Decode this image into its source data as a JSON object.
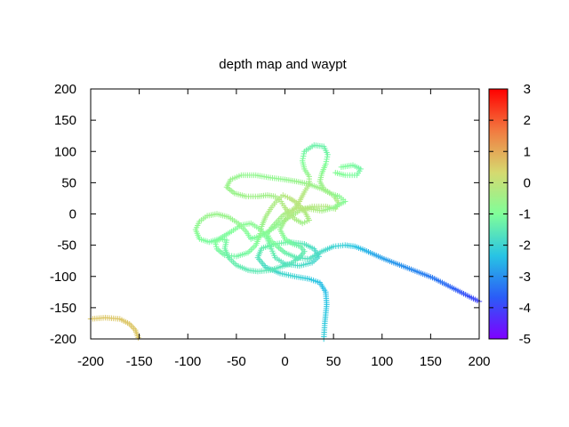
{
  "chart_data": {
    "type": "scatter",
    "title": "depth map   and waypt",
    "xlabel": "",
    "ylabel": "",
    "xlim": [
      -200,
      200
    ],
    "ylim": [
      -200,
      200
    ],
    "xticks": [
      "-200",
      "-150",
      "-100",
      "-50",
      "0",
      "50",
      "100",
      "150",
      "200"
    ],
    "yticks": [
      "200",
      "150",
      "100",
      "50",
      "0",
      "-50",
      "-100",
      "-150",
      "-200"
    ],
    "colorbar": {
      "range": [
        -5,
        3
      ],
      "ticks": [
        "3",
        "2",
        "1",
        "0",
        "-1",
        "-2",
        "-3",
        "-4",
        "-5"
      ],
      "colormap": "rainbow",
      "colors": [
        "#7f00ff",
        "#2a5cf7",
        "#28c4e4",
        "#80fe99",
        "#d6d96f",
        "#f27a40",
        "#ff0000"
      ]
    },
    "grid": false,
    "marker": "plus",
    "series": [
      {
        "points": [
          [
            -200,
            -168,
            0.6
          ],
          [
            -185,
            -166,
            0.6
          ],
          [
            -170,
            -168,
            0.6
          ],
          [
            -160,
            -176,
            0.6
          ],
          [
            -154,
            -186,
            0.6
          ],
          [
            -151,
            -198,
            0.6
          ],
          [
            40,
            -200,
            -2.1
          ],
          [
            41,
            -175,
            -2.2
          ],
          [
            43,
            -145,
            -2.3
          ],
          [
            42,
            -125,
            -2.4
          ],
          [
            36,
            -110,
            -2.4
          ],
          [
            25,
            -104,
            -2.2
          ],
          [
            10,
            -100,
            -2.0
          ],
          [
            -5,
            -95,
            -1.9
          ],
          [
            -20,
            -85,
            -1.8
          ],
          [
            -28,
            -70,
            -1.6
          ],
          [
            -24,
            -55,
            -1.4
          ],
          [
            -10,
            -48,
            -1.2
          ],
          [
            5,
            -45,
            -1.3
          ],
          [
            20,
            -48,
            -1.6
          ],
          [
            30,
            -56,
            -1.8
          ],
          [
            35,
            -68,
            -1.9
          ],
          [
            28,
            -78,
            -1.9
          ],
          [
            15,
            -83,
            -1.8
          ],
          [
            0,
            -80,
            -1.7
          ],
          [
            -10,
            -70,
            -1.5
          ],
          [
            -14,
            -56,
            -1.3
          ],
          [
            -18,
            -40,
            -1.1
          ],
          [
            -25,
            -25,
            -0.9
          ],
          [
            -35,
            -15,
            -0.8
          ],
          [
            -45,
            -18,
            -0.9
          ],
          [
            -55,
            -28,
            -1.0
          ],
          [
            -68,
            -40,
            -1.1
          ],
          [
            -78,
            -45,
            -1.1
          ],
          [
            -88,
            -40,
            -1.0
          ],
          [
            -92,
            -25,
            -0.8
          ],
          [
            -88,
            -12,
            -0.7
          ],
          [
            -80,
            -3,
            -0.6
          ],
          [
            -70,
            0,
            -0.6
          ],
          [
            -58,
            -5,
            -0.6
          ],
          [
            -48,
            -15,
            -0.7
          ],
          [
            -40,
            -28,
            -0.9
          ],
          [
            -35,
            -40,
            -1.1
          ],
          [
            -25,
            -35,
            -1.0
          ],
          [
            -14,
            -25,
            -0.8
          ],
          [
            -5,
            -15,
            -0.7
          ],
          [
            5,
            -5,
            -0.5
          ],
          [
            15,
            5,
            -0.3
          ],
          [
            28,
            12,
            -0.2
          ],
          [
            42,
            12,
            -0.2
          ],
          [
            52,
            8,
            -0.3
          ],
          [
            55,
            18,
            -0.3
          ],
          [
            50,
            30,
            -0.4
          ],
          [
            38,
            40,
            -0.5
          ],
          [
            24,
            48,
            -0.6
          ],
          [
            12,
            52,
            -0.6
          ],
          [
            0,
            55,
            -0.7
          ],
          [
            -15,
            58,
            -0.7
          ],
          [
            -30,
            62,
            -0.7
          ],
          [
            -45,
            62,
            -0.7
          ],
          [
            -56,
            55,
            -0.6
          ],
          [
            -60,
            43,
            -0.6
          ],
          [
            -52,
            33,
            -0.6
          ],
          [
            -40,
            28,
            -0.5
          ],
          [
            -28,
            28,
            -0.5
          ],
          [
            -18,
            30,
            -0.5
          ],
          [
            -10,
            28,
            -0.4
          ],
          [
            -4,
            20,
            -0.3
          ],
          [
            0,
            10,
            -0.2
          ],
          [
            5,
            0,
            -0.2
          ],
          [
            10,
            -8,
            -0.3
          ],
          [
            18,
            -15,
            -0.5
          ],
          [
            25,
            -10,
            -0.4
          ],
          [
            20,
            5,
            -0.2
          ],
          [
            12,
            18,
            -0.1
          ],
          [
            5,
            25,
            -0.1
          ],
          [
            -2,
            30,
            -0.2
          ],
          [
            -8,
            22,
            -0.3
          ],
          [
            -14,
            10,
            -0.3
          ],
          [
            -20,
            -5,
            -0.4
          ],
          [
            -24,
            -20,
            -0.6
          ],
          [
            -26,
            -35,
            -0.8
          ],
          [
            -30,
            -50,
            -1.0
          ],
          [
            -38,
            -62,
            -1.1
          ],
          [
            -50,
            -68,
            -1.2
          ],
          [
            -62,
            -66,
            -1.2
          ],
          [
            -70,
            -56,
            -1.1
          ],
          [
            -72,
            -45,
            -1.0
          ],
          [
            -66,
            -40,
            -1.0
          ],
          [
            -60,
            -42,
            -1.1
          ],
          [
            -62,
            -55,
            -1.2
          ],
          [
            -58,
            -70,
            -1.3
          ],
          [
            -50,
            -82,
            -1.4
          ],
          [
            -38,
            -90,
            -1.5
          ],
          [
            -28,
            -92,
            -1.5
          ],
          [
            -15,
            -90,
            -1.5
          ],
          [
            -5,
            -85,
            -1.6
          ],
          [
            5,
            -80,
            -1.6
          ],
          [
            15,
            -70,
            -1.5
          ],
          [
            20,
            -60,
            -1.4
          ],
          [
            16,
            -52,
            -1.3
          ],
          [
            8,
            -48,
            -1.2
          ],
          [
            0,
            -40,
            -1.0
          ],
          [
            -5,
            -25,
            -0.7
          ],
          [
            0,
            -10,
            -0.4
          ],
          [
            8,
            5,
            -0.2
          ],
          [
            15,
            20,
            -0.1
          ],
          [
            20,
            35,
            -0.2
          ],
          [
            25,
            48,
            -0.4
          ],
          [
            25,
            60,
            -0.6
          ],
          [
            20,
            72,
            -0.8
          ],
          [
            18,
            85,
            -1.0
          ],
          [
            20,
            100,
            -1.2
          ],
          [
            30,
            110,
            -1.3
          ],
          [
            40,
            108,
            -1.3
          ],
          [
            44,
            95,
            -1.2
          ],
          [
            42,
            80,
            -1.0
          ],
          [
            38,
            65,
            -0.8
          ],
          [
            36,
            52,
            -0.6
          ],
          [
            40,
            40,
            -0.5
          ],
          [
            48,
            32,
            -0.6
          ],
          [
            56,
            28,
            -0.8
          ],
          [
            62,
            20,
            -0.9
          ],
          [
            50,
            10,
            -0.7
          ],
          [
            38,
            5,
            -0.4
          ],
          [
            25,
            8,
            -0.2
          ],
          [
            14,
            10,
            -0.1
          ],
          [
            5,
            5,
            -0.2
          ],
          [
            -2,
            -2,
            -0.4
          ],
          [
            -8,
            -12,
            -0.6
          ],
          [
            -14,
            -22,
            -0.7
          ],
          [
            -18,
            -32,
            -0.9
          ],
          [
            -15,
            -42,
            -1.0
          ],
          [
            -8,
            -52,
            -1.1
          ],
          [
            0,
            -62,
            -1.3
          ],
          [
            12,
            -70,
            -1.5
          ],
          [
            25,
            -72,
            -1.7
          ],
          [
            38,
            -60,
            -1.8
          ],
          [
            50,
            -52,
            -2.0
          ],
          [
            62,
            -50,
            -2.1
          ],
          [
            72,
            -52,
            -2.3
          ],
          [
            82,
            -58,
            -2.5
          ],
          [
            92,
            -65,
            -2.7
          ],
          [
            102,
            -72,
            -2.8
          ],
          [
            112,
            -78,
            -2.9
          ],
          [
            122,
            -84,
            -3.0
          ],
          [
            132,
            -90,
            -3.1
          ],
          [
            142,
            -96,
            -3.2
          ],
          [
            152,
            -102,
            -3.3
          ],
          [
            162,
            -110,
            -3.4
          ],
          [
            172,
            -118,
            -3.6
          ],
          [
            182,
            -126,
            -3.8
          ],
          [
            192,
            -134,
            -3.9
          ],
          [
            200,
            -140,
            -4.0
          ],
          [
            58,
            75,
            -1.0
          ],
          [
            70,
            78,
            -1.1
          ],
          [
            78,
            72,
            -1.2
          ],
          [
            74,
            62,
            -1.1
          ],
          [
            62,
            62,
            -1.0
          ],
          [
            52,
            66,
            -0.9
          ]
        ]
      }
    ]
  }
}
